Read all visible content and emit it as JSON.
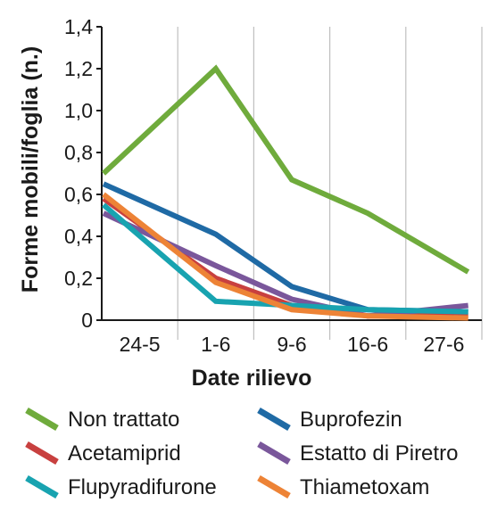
{
  "chart_data": {
    "type": "line",
    "title": "",
    "xlabel": "Date rilievo",
    "ylabel": "Forme mobili/foglia (n.)",
    "categories": [
      "24-5",
      "1-6",
      "9-6",
      "16-6",
      "27-6"
    ],
    "ylim": [
      0,
      1.4
    ],
    "yticks": [
      "0",
      "0,2",
      "0,4",
      "0,6",
      "0,8",
      "1,0",
      "1,2",
      "1,4"
    ],
    "grid": "vertical",
    "legend_position": "bottom",
    "series": [
      {
        "name": "Non trattato",
        "color": "#6fab3c",
        "values": [
          0.7,
          1.2,
          0.67,
          0.51,
          0.23
        ]
      },
      {
        "name": "Buprofezin",
        "color": "#1f6aa5",
        "values": [
          0.65,
          0.41,
          0.16,
          0.05,
          0.04
        ]
      },
      {
        "name": "Acetamiprid",
        "color": "#c8403f",
        "values": [
          0.58,
          0.2,
          0.07,
          0.02,
          0.02
        ]
      },
      {
        "name": "Estatto di Piretro",
        "color": "#7a579b",
        "values": [
          0.51,
          0.26,
          0.1,
          0.02,
          0.07
        ]
      },
      {
        "name": "Flupyradifurone",
        "color": "#18a3b0",
        "values": [
          0.55,
          0.09,
          0.07,
          0.05,
          0.04
        ]
      },
      {
        "name": "Thiametoxam",
        "color": "#ed8336",
        "values": [
          0.6,
          0.18,
          0.05,
          0.02,
          0.01
        ]
      }
    ]
  }
}
